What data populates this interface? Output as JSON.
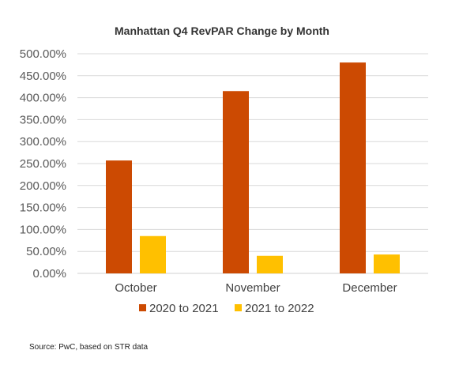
{
  "chart_data": {
    "type": "bar",
    "title": "Manhattan Q4 RevPAR Change by Month",
    "categories": [
      "October",
      "November",
      "December"
    ],
    "series": [
      {
        "name": "2020 to 2021",
        "values": [
          257,
          415,
          480
        ],
        "color": "#cc4a02"
      },
      {
        "name": "2021 to 2022",
        "values": [
          85,
          40,
          43
        ],
        "color": "#ffc000"
      }
    ],
    "yticks": [
      "0.00%",
      "50.00%",
      "100.00%",
      "150.00%",
      "200.00%",
      "250.00%",
      "300.00%",
      "350.00%",
      "400.00%",
      "450.00%",
      "500.00%"
    ],
    "ylim": [
      0,
      500
    ],
    "grid": true,
    "legend_position": "bottom"
  },
  "source": "Source: PwC, based on STR data"
}
